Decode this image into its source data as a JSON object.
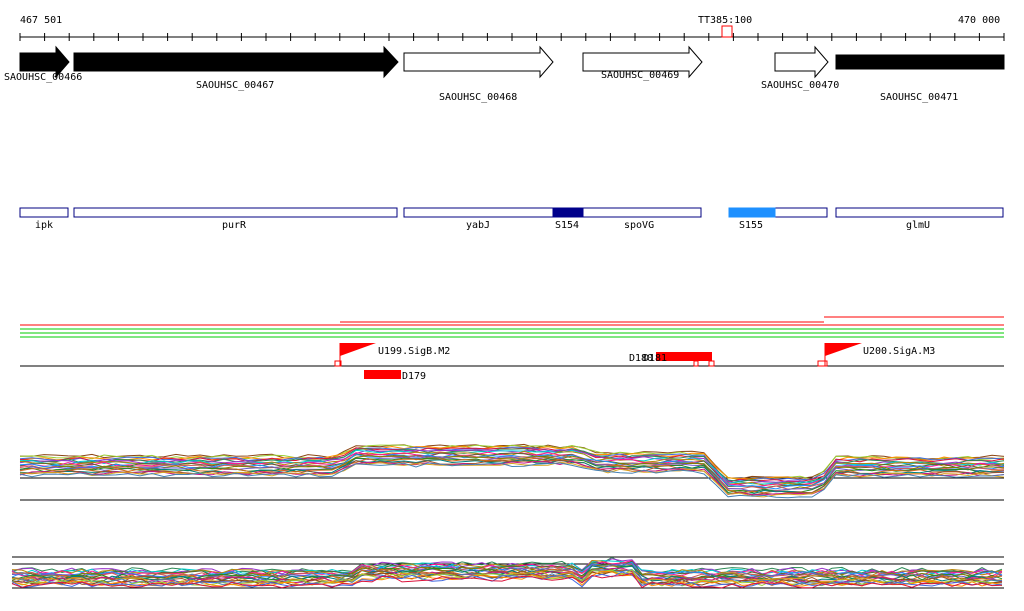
{
  "ruler": {
    "start_label": "467 501",
    "end_label": "470 000",
    "marker_label": "TT385:100"
  },
  "genes": [
    {
      "name": "SAOUHSC_00466",
      "strand": "+",
      "filled": true
    },
    {
      "name": "SAOUHSC_00467",
      "strand": "+",
      "filled": true
    },
    {
      "name": "SAOUHSC_00468",
      "strand": "+",
      "filled": false
    },
    {
      "name": "SAOUHSC_00469",
      "strand": "+",
      "filled": false
    },
    {
      "name": "SAOUHSC_00470",
      "strand": "+",
      "filled": false
    },
    {
      "name": "SAOUHSC_00471",
      "strand": "+",
      "filled": true
    }
  ],
  "features": [
    {
      "name": "ipk"
    },
    {
      "name": "purR"
    },
    {
      "name": "yabJ"
    },
    {
      "name": "S154",
      "color": "#00008b"
    },
    {
      "name": "spoVG"
    },
    {
      "name": "S155",
      "color": "#1e90ff"
    },
    {
      "name": "glmU"
    }
  ],
  "regulatory": {
    "promoters": [
      {
        "name": "U199.SigB.M2",
        "color": "#ff0000"
      },
      {
        "name": "U200.SigA.M3",
        "color": "#ff0000"
      }
    ],
    "boxes": [
      {
        "name": "D179"
      },
      {
        "name": "D180"
      },
      {
        "name": "D181"
      }
    ]
  },
  "colors": {
    "gene_fill": "#000000",
    "feature_border": "#000080",
    "red": "#ff0000",
    "green": "#00cc00"
  }
}
